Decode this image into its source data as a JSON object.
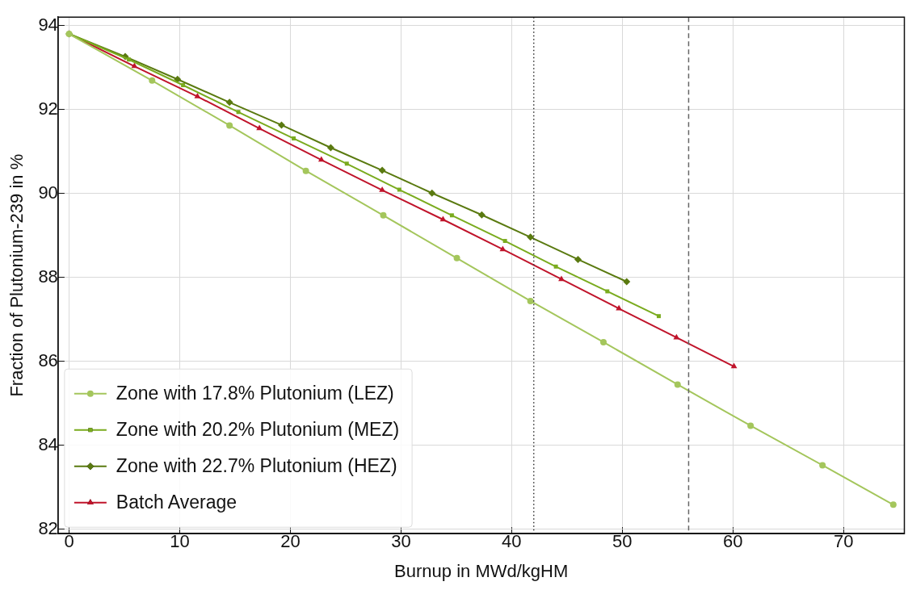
{
  "chart_data": {
    "type": "line",
    "xlabel": "Burnup in MWd/kgHM",
    "ylabel": "Fraction of Plutonium-239 in %",
    "xlim": [
      -1,
      75.5
    ],
    "xticks": [
      0,
      10,
      20,
      30,
      40,
      50,
      60,
      70
    ],
    "ylim": [
      81.9,
      94.2
    ],
    "yticks": [
      82,
      84,
      86,
      88,
      90,
      92,
      94
    ],
    "grid": true,
    "legend": "bottom left",
    "line_style": "solid",
    "series": [
      {
        "name": "Zone with 17.8% Plutonium (LEZ)",
        "color": "#a4c65c",
        "marker": "circle",
        "x": [
          0,
          7.5,
          14.5,
          21.4,
          28.4,
          35.05,
          41.7,
          48.3,
          55,
          61.6,
          68.1,
          74.5
        ],
        "values": [
          93.8,
          92.69,
          91.62,
          90.54,
          89.48,
          88.46,
          87.44,
          86.46,
          85.45,
          84.47,
          83.53,
          82.59
        ]
      },
      {
        "name": "Zone with 20.2% Plutonium (MEZ)",
        "color": "#7aab1e",
        "marker": "square",
        "x": [
          0,
          5.4,
          10.3,
          15.3,
          20.3,
          25.1,
          29.85,
          34.6,
          39.4,
          44,
          48.65,
          53.3
        ],
        "values": [
          93.8,
          93.19,
          92.58,
          91.94,
          91.31,
          90.71,
          90.09,
          89.48,
          88.87,
          88.26,
          87.67,
          87.08
        ]
      },
      {
        "name": "Zone with 22.7% Plutonium (HEZ)",
        "color": "#5a7a10",
        "marker": "diamond",
        "x": [
          0,
          5.07,
          9.8,
          14.5,
          19.2,
          23.65,
          28.3,
          32.8,
          37.3,
          41.7,
          46,
          50.4
        ],
        "values": [
          93.8,
          93.26,
          92.72,
          92.17,
          91.63,
          91.09,
          90.55,
          90.01,
          89.49,
          88.96,
          88.43,
          87.9
        ]
      },
      {
        "name": "Batch Average",
        "color": "#c0142b",
        "marker": "triangle",
        "x": [
          0,
          5.9,
          11.6,
          17.2,
          22.8,
          28.3,
          33.8,
          39.2,
          44.5,
          49.7,
          54.9,
          60.1
        ],
        "values": [
          93.8,
          93.03,
          92.31,
          91.55,
          90.8,
          90.08,
          89.38,
          88.67,
          87.96,
          87.26,
          86.57,
          85.88
        ]
      }
    ],
    "ref_lines": [
      {
        "axis": "x",
        "value": 42,
        "color": "#333333",
        "line_style": "dotted"
      },
      {
        "axis": "x",
        "value": 56,
        "color": "#666666",
        "line_style": "dashed"
      }
    ]
  }
}
